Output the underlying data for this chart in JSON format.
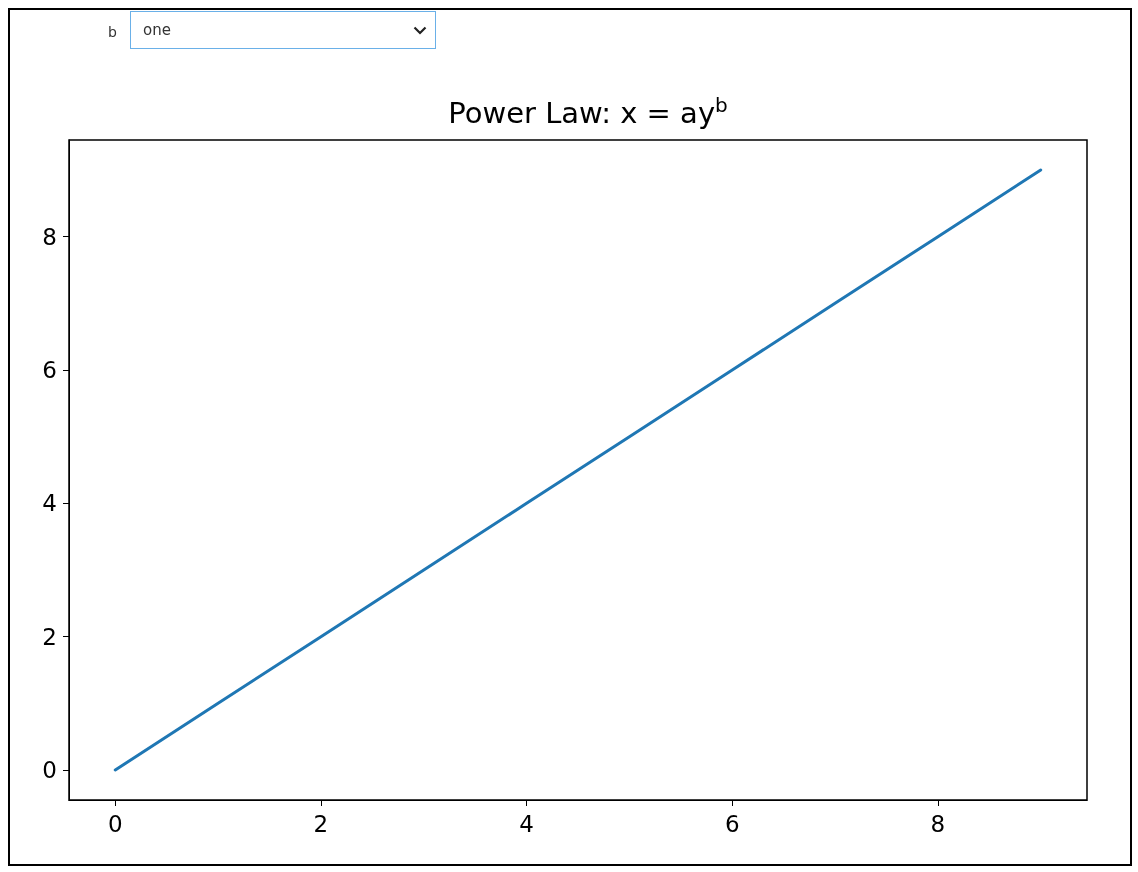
{
  "chart_data": {
    "type": "line",
    "title": "Power Law: x = ay$^{b}$",
    "x": [
      0,
      1,
      2,
      3,
      4,
      5,
      6,
      7,
      8,
      9
    ],
    "series": [
      {
        "color": "#1f77b4",
        "values": [
          0,
          1,
          2,
          3,
          4,
          5,
          6,
          7,
          8,
          9
        ]
      }
    ],
    "xlim": [
      -0.45,
      9.45
    ],
    "ylim": [
      -0.45,
      9.45
    ],
    "xticks": [
      0,
      2,
      4,
      6,
      8
    ],
    "yticks": [
      0,
      2,
      4,
      6,
      8
    ],
    "grid": false,
    "marker": "none",
    "line_style": "solid",
    "annotations": [
      "b",
      "one"
    ]
  }
}
